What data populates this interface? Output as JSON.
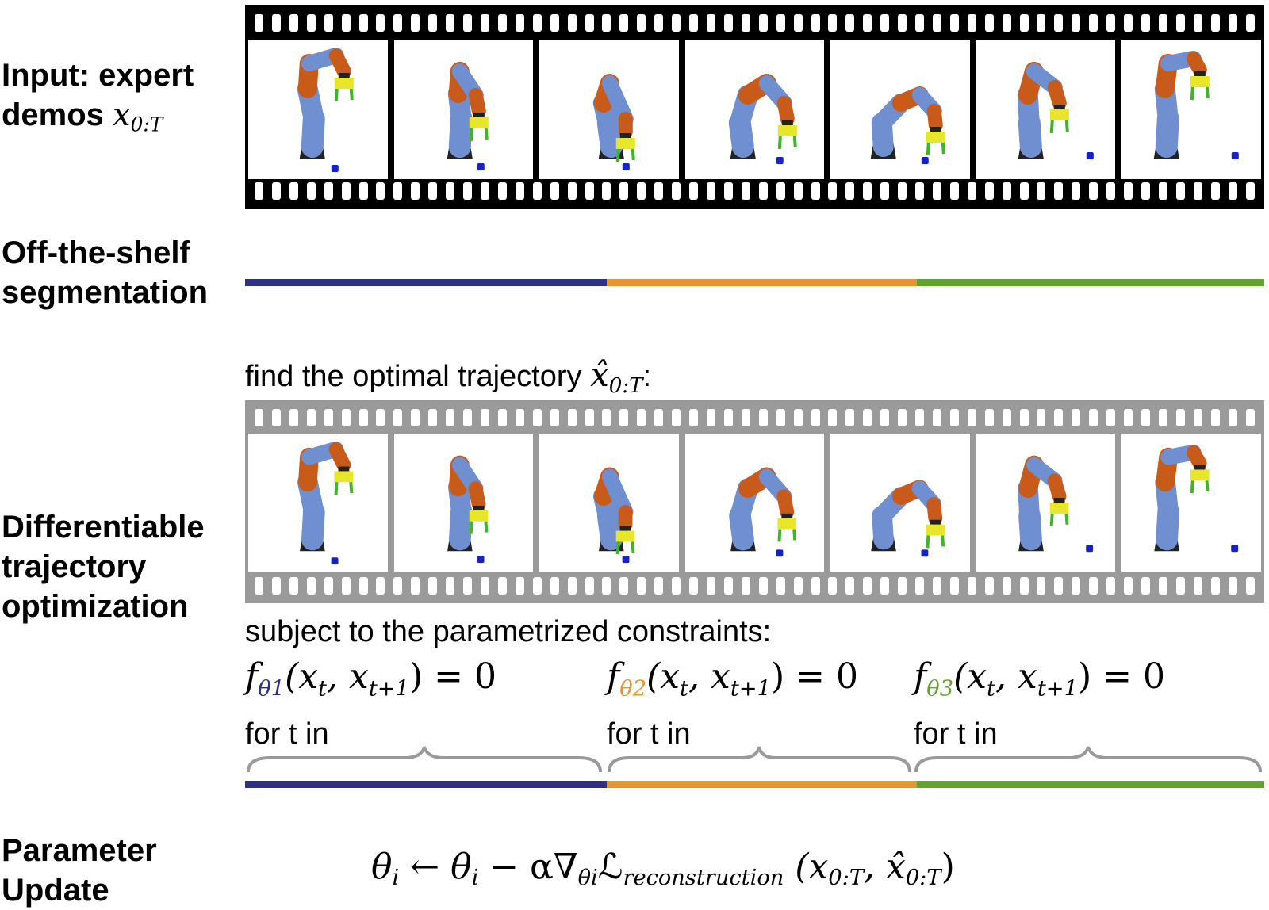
{
  "rows": {
    "input": {
      "line1": "Input: expert",
      "line2": "demos",
      "math": "x",
      "math_sub": "0:T"
    },
    "segmentation": {
      "line1": "Off-the-shelf",
      "line2": "segmentation"
    },
    "optimization": {
      "line1": "Differentiable",
      "line2": "trajectory",
      "line3": "optimization"
    },
    "update": {
      "line1": "Parameter",
      "line2": "Update"
    }
  },
  "captions": {
    "find": "find the optimal trajectory",
    "find_math": "x̂",
    "find_math_sub": "0:T",
    "find_colon": ":",
    "subject": "subject to the parametrized constraints:"
  },
  "frames": [
    {
      "pose": 0,
      "cube": "low-mid"
    },
    {
      "pose": 1,
      "cube": "low-right"
    },
    {
      "pose": 2,
      "cube": "low-right"
    },
    {
      "pose": 3,
      "cube": "mid"
    },
    {
      "pose": 4,
      "cube": "mid"
    },
    {
      "pose": 5,
      "cube": "right"
    },
    {
      "pose": 6,
      "cube": "right"
    }
  ],
  "segments": [
    {
      "name": "segment-1",
      "color": "#2e3184",
      "fraction": 0.355
    },
    {
      "name": "segment-2",
      "color": "#e39631",
      "fraction": 0.304
    },
    {
      "name": "segment-3",
      "color": "#62a330",
      "fraction": 0.341
    }
  ],
  "constraints": [
    {
      "f": "f",
      "theta": "θ",
      "theta_sub": "1",
      "color": "#2e3184",
      "args": "(x",
      "t": "t",
      "sep": ", x",
      "t1": "t+1",
      "tail": ") = 0",
      "for": "for t in"
    },
    {
      "f": "f",
      "theta": "θ",
      "theta_sub": "2",
      "color": "#e39631",
      "args": "(x",
      "t": "t",
      "sep": ", x",
      "t1": "t+1",
      "tail": ") = 0",
      "for": "for t in"
    },
    {
      "f": "f",
      "theta": "θ",
      "theta_sub": "3",
      "color": "#62a330",
      "args": "(x",
      "t": "t",
      "sep": ", x",
      "t1": "t+1",
      "tail": ") = 0",
      "for": "for t in"
    }
  ],
  "update_formula": {
    "lhs": "θ",
    "lhs_sub": "i",
    "arrow": " ← ",
    "rhs_theta": "θ",
    "rhs_sub": "i",
    "minus": " − α∇",
    "grad_sub": "θi",
    "loss": "ℒ",
    "loss_sub": "reconstruction",
    "args_open": " (x",
    "args_sub1": "0:T",
    "args_mid": ", x̂",
    "args_sub2": "0:T",
    "args_close": ")"
  },
  "colors": {
    "film_dark": "#000000",
    "film_gray": "#9a9a9a",
    "robot_blue": "#6f8fd0",
    "robot_orange": "#c85a1a",
    "gripper_yellow": "#e8e62a",
    "gripper_green": "#3fb62a",
    "base_black": "#222222",
    "cube_blue": "#1522c8",
    "brace_gray": "#9a9a9a"
  }
}
